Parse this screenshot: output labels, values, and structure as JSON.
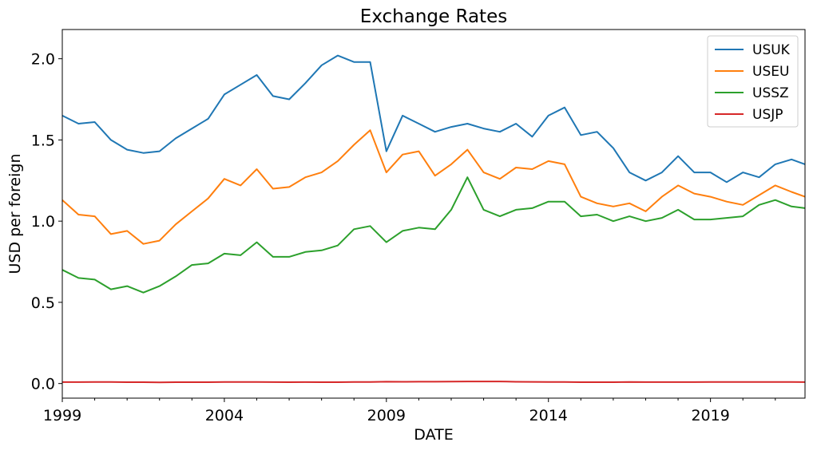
{
  "chart_data": {
    "type": "line",
    "title": "Exchange Rates",
    "xlabel": "DATE",
    "ylabel": "USD per foreign",
    "xlim": [
      "1999-01",
      "2021-12"
    ],
    "ylim": [
      -0.09,
      2.18
    ],
    "x_ticks": [
      "1999",
      "2004",
      "2009",
      "2014",
      "2019"
    ],
    "y_ticks": [
      "0.0",
      "0.5",
      "1.0",
      "1.5",
      "2.0"
    ],
    "grid": false,
    "legend_position": "top-right",
    "x": [
      "1999-01",
      "1999-07",
      "2000-01",
      "2000-07",
      "2001-01",
      "2001-07",
      "2002-01",
      "2002-07",
      "2003-01",
      "2003-07",
      "2004-01",
      "2004-07",
      "2005-01",
      "2005-07",
      "2006-01",
      "2006-07",
      "2007-01",
      "2007-07",
      "2008-01",
      "2008-07",
      "2009-01",
      "2009-07",
      "2010-01",
      "2010-07",
      "2011-01",
      "2011-07",
      "2012-01",
      "2012-07",
      "2013-01",
      "2013-07",
      "2014-01",
      "2014-07",
      "2015-01",
      "2015-07",
      "2016-01",
      "2016-07",
      "2017-01",
      "2017-07",
      "2018-01",
      "2018-07",
      "2019-01",
      "2019-07",
      "2020-01",
      "2020-07",
      "2021-01",
      "2021-07",
      "2021-12"
    ],
    "series": [
      {
        "name": "USUK",
        "color": "#1f77b4",
        "values": [
          1.65,
          1.6,
          1.61,
          1.5,
          1.44,
          1.42,
          1.43,
          1.51,
          1.57,
          1.63,
          1.78,
          1.84,
          1.9,
          1.77,
          1.75,
          1.85,
          1.96,
          2.02,
          1.98,
          1.98,
          1.43,
          1.65,
          1.6,
          1.55,
          1.58,
          1.6,
          1.57,
          1.55,
          1.6,
          1.52,
          1.65,
          1.7,
          1.53,
          1.55,
          1.45,
          1.3,
          1.25,
          1.3,
          1.4,
          1.3,
          1.3,
          1.24,
          1.3,
          1.27,
          1.35,
          1.38,
          1.35
        ]
      },
      {
        "name": "USEU",
        "color": "#ff7f0e",
        "values": [
          1.13,
          1.04,
          1.03,
          0.92,
          0.94,
          0.86,
          0.88,
          0.98,
          1.06,
          1.14,
          1.26,
          1.22,
          1.32,
          1.2,
          1.21,
          1.27,
          1.3,
          1.37,
          1.47,
          1.56,
          1.3,
          1.41,
          1.43,
          1.28,
          1.35,
          1.44,
          1.3,
          1.26,
          1.33,
          1.32,
          1.37,
          1.35,
          1.15,
          1.11,
          1.09,
          1.11,
          1.06,
          1.15,
          1.22,
          1.17,
          1.15,
          1.12,
          1.1,
          1.16,
          1.22,
          1.18,
          1.15
        ]
      },
      {
        "name": "USSZ",
        "color": "#2ca02c",
        "values": [
          0.7,
          0.65,
          0.64,
          0.58,
          0.6,
          0.56,
          0.6,
          0.66,
          0.73,
          0.74,
          0.8,
          0.79,
          0.87,
          0.78,
          0.78,
          0.81,
          0.82,
          0.85,
          0.95,
          0.97,
          0.87,
          0.94,
          0.96,
          0.95,
          1.07,
          1.27,
          1.07,
          1.03,
          1.07,
          1.08,
          1.12,
          1.12,
          1.03,
          1.04,
          1,
          1.03,
          1,
          1.02,
          1.07,
          1.01,
          1.01,
          1.02,
          1.03,
          1.1,
          1.13,
          1.09,
          1.08
        ]
      },
      {
        "name": "USJP",
        "color": "#d62728",
        "values": [
          0.0088,
          0.0087,
          0.0094,
          0.0093,
          0.0085,
          0.0081,
          0.0075,
          0.0084,
          0.0084,
          0.0084,
          0.0095,
          0.0091,
          0.0097,
          0.0089,
          0.0085,
          0.0086,
          0.0083,
          0.0083,
          0.0092,
          0.0094,
          0.011,
          0.0105,
          0.011,
          0.0113,
          0.012,
          0.0125,
          0.0128,
          0.0127,
          0.0105,
          0.0101,
          0.0097,
          0.0097,
          0.0084,
          0.0081,
          0.0084,
          0.0097,
          0.0086,
          0.0089,
          0.0089,
          0.009,
          0.0092,
          0.0093,
          0.0092,
          0.0094,
          0.0096,
          0.0091,
          0.0087
        ]
      }
    ]
  }
}
